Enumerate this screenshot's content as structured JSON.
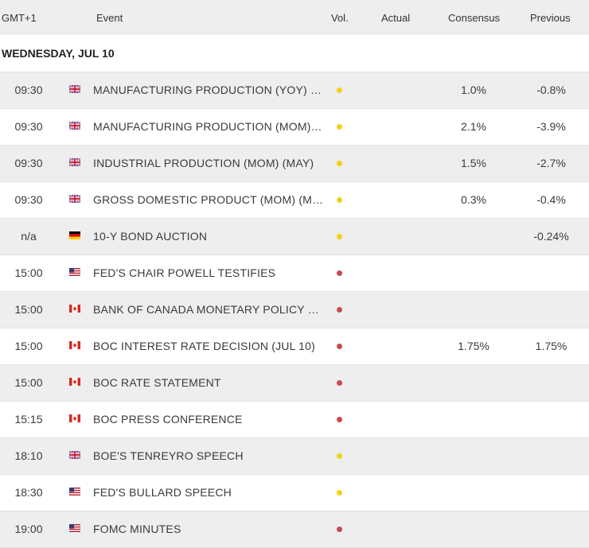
{
  "header": {
    "timezone": "GMT+1",
    "event": "Event",
    "vol": "Vol.",
    "actual": "Actual",
    "consensus": "Consensus",
    "previous": "Previous"
  },
  "day_label": "WEDNESDAY, JUL 10",
  "colors": {
    "medium": "#f0d21a",
    "high": "#c9494f",
    "alt_row": "#eeeeee"
  },
  "rows": [
    {
      "time": "09:30",
      "country": "uk",
      "event": "MANUFACTURING PRODUCTION (YOY) (M...",
      "vol": "medium",
      "actual": "",
      "consensus": "1.0%",
      "previous": "-0.8%"
    },
    {
      "time": "09:30",
      "country": "uk",
      "event": "MANUFACTURING PRODUCTION (MOM) (...",
      "vol": "medium",
      "actual": "",
      "consensus": "2.1%",
      "previous": "-3.9%"
    },
    {
      "time": "09:30",
      "country": "uk",
      "event": "INDUSTRIAL PRODUCTION (MOM) (MAY)",
      "vol": "medium",
      "actual": "",
      "consensus": "1.5%",
      "previous": "-2.7%"
    },
    {
      "time": "09:30",
      "country": "uk",
      "event": "GROSS DOMESTIC PRODUCT (MOM) (MAY)",
      "vol": "medium",
      "actual": "",
      "consensus": "0.3%",
      "previous": "-0.4%"
    },
    {
      "time": "n/a",
      "country": "de",
      "event": "10-Y BOND AUCTION",
      "vol": "medium",
      "actual": "",
      "consensus": "",
      "previous": "-0.24%"
    },
    {
      "time": "15:00",
      "country": "us",
      "event": "FED'S CHAIR POWELL TESTIFIES",
      "vol": "high",
      "actual": "",
      "consensus": "",
      "previous": ""
    },
    {
      "time": "15:00",
      "country": "ca",
      "event": "BANK OF CANADA MONETARY POLICY RE...",
      "vol": "high",
      "actual": "",
      "consensus": "",
      "previous": ""
    },
    {
      "time": "15:00",
      "country": "ca",
      "event": "BOC INTEREST RATE DECISION (JUL 10)",
      "vol": "high",
      "actual": "",
      "consensus": "1.75%",
      "previous": "1.75%"
    },
    {
      "time": "15:00",
      "country": "ca",
      "event": "BOC RATE STATEMENT",
      "vol": "high",
      "actual": "",
      "consensus": "",
      "previous": ""
    },
    {
      "time": "15:15",
      "country": "ca",
      "event": "BOC PRESS CONFERENCE",
      "vol": "high",
      "actual": "",
      "consensus": "",
      "previous": ""
    },
    {
      "time": "18:10",
      "country": "uk",
      "event": "BOE'S TENREYRO SPEECH",
      "vol": "medium",
      "actual": "",
      "consensus": "",
      "previous": ""
    },
    {
      "time": "18:30",
      "country": "us",
      "event": "FED'S BULLARD SPEECH",
      "vol": "medium",
      "actual": "",
      "consensus": "",
      "previous": ""
    },
    {
      "time": "19:00",
      "country": "us",
      "event": "FOMC MINUTES",
      "vol": "high",
      "actual": "",
      "consensus": "",
      "previous": ""
    }
  ]
}
